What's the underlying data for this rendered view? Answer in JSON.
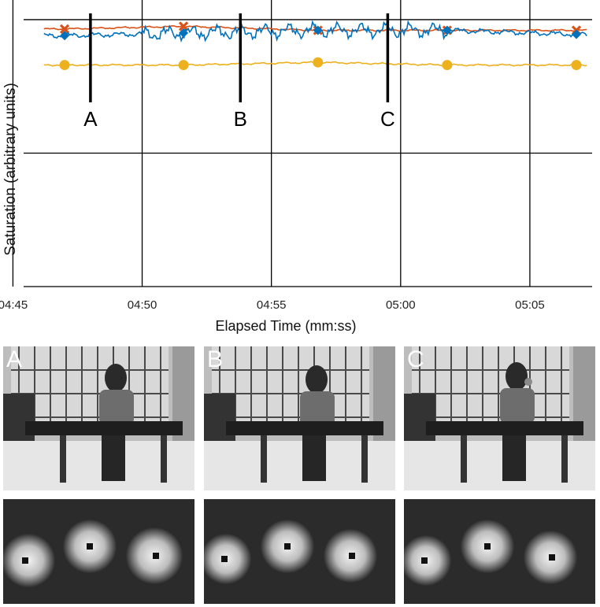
{
  "chart_data": {
    "type": "line",
    "title": "",
    "xlabel": "Elapsed Time (mm:ss)",
    "ylabel": "Saturation (arbitrary units)",
    "x_ticks": [
      "04:45",
      "04:50",
      "04:55",
      "05:00",
      "05:05"
    ],
    "x_range_seconds_shown": "04:44.5 to 05:07.5",
    "grid": true,
    "legend": "none",
    "series": [
      {
        "color": "#d95319",
        "marker": "x",
        "x": [
          "04:47",
          "04:51.6",
          "04:56.8",
          "05:01.8",
          "05:06.8"
        ],
        "y": [
          0.965,
          0.975,
          0.96,
          0.96,
          0.96
        ]
      },
      {
        "color": "#0072bd",
        "marker": "diamond",
        "x": [
          "04:47",
          "04:51.6",
          "04:56.8",
          "05:01.8",
          "05:06.8"
        ],
        "y": [
          0.94,
          0.95,
          0.96,
          0.96,
          0.945
        ]
      },
      {
        "color": "#edb120",
        "marker": "circle",
        "x": [
          "04:47",
          "04:51.6",
          "04:56.8",
          "05:01.8",
          "05:06.8"
        ],
        "y": [
          0.83,
          0.83,
          0.84,
          0.83,
          0.83
        ]
      }
    ],
    "event_markers": [
      {
        "label": "A",
        "x": "04:48"
      },
      {
        "label": "B",
        "x": "04:53.8"
      },
      {
        "label": "C",
        "x": "04:59.5"
      }
    ]
  },
  "panels": [
    {
      "label": "A"
    },
    {
      "label": "B"
    },
    {
      "label": "C"
    }
  ],
  "colors": {
    "series1": "#d95319",
    "series2": "#0072bd",
    "series3": "#edb120",
    "grid": "#000000"
  }
}
